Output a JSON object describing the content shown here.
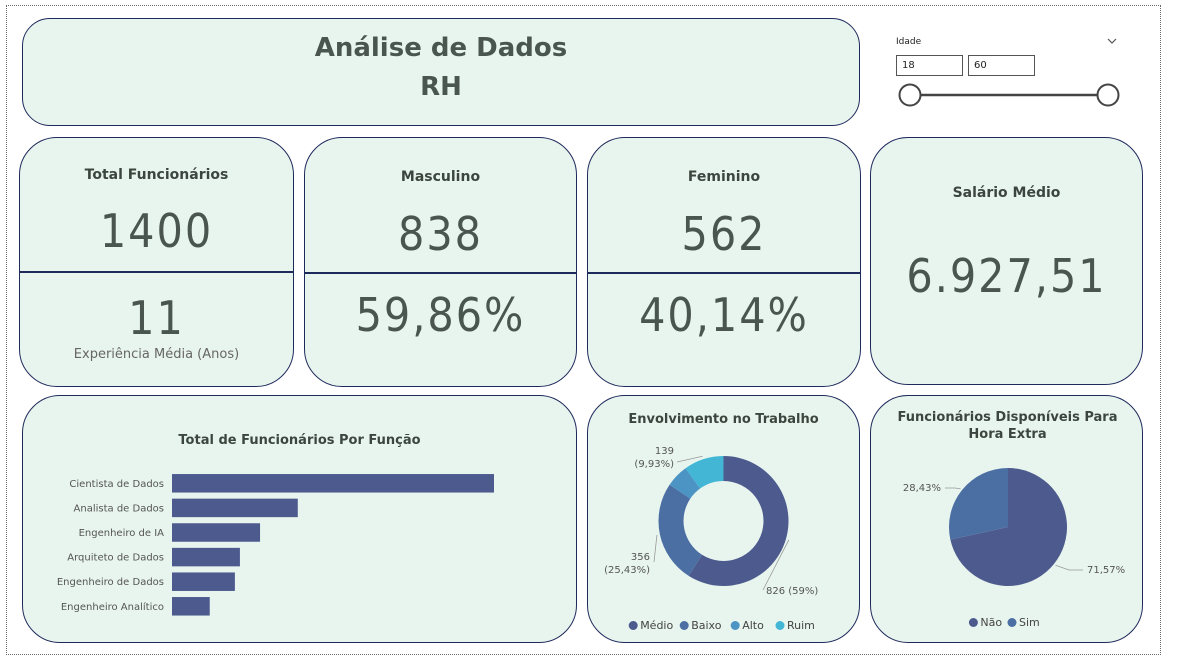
{
  "header": {
    "title_line1": "Análise de Dados",
    "title_line2": "RH"
  },
  "slicer": {
    "label": "Idade",
    "min": "18",
    "max": "60"
  },
  "kpis": {
    "total": {
      "label": "Total Funcionários",
      "value": "1400",
      "sub_value": "11",
      "sub_label": "Experiência Média (Anos)"
    },
    "male": {
      "label": "Masculino",
      "value": "838",
      "pct": "59,86%"
    },
    "female": {
      "label": "Feminino",
      "value": "562",
      "pct": "40,14%"
    },
    "salary": {
      "label": "Salário Médio",
      "value": "6.927,51"
    }
  },
  "colors": {
    "navy": "#4d5a8e",
    "steel": "#4b6ea3",
    "mid": "#4c94c4",
    "light": "#43b6d6",
    "card": "#e8f5ee"
  },
  "chart_data": [
    {
      "type": "bar",
      "title": "Total de Funcionários Por Função",
      "categories": [
        "Cientista de Dados",
        "Analista de Dados",
        "Engenheiro de IA",
        "Arquiteto de Dados",
        "Engenheiro de Dados",
        "Engenheiro Analítico"
      ],
      "values": [
        640,
        250,
        175,
        135,
        125,
        75
      ]
    },
    {
      "type": "pie",
      "donut": true,
      "title": "Envolvimento no Trabalho",
      "labels": [
        "Médio",
        "Baixo",
        "Alto",
        "Ruim"
      ],
      "values": [
        826,
        356,
        79,
        139
      ],
      "data_labels": [
        "826 (59%)",
        "356 (25,43%)",
        "",
        "139 (9,93%)"
      ],
      "legend": "bottom"
    },
    {
      "type": "pie",
      "title": "Funcionários Disponíveis Para Hora Extra",
      "labels": [
        "Não",
        "Sim"
      ],
      "values": [
        71.57,
        28.43
      ],
      "data_labels": [
        "71,57%",
        "28,43%"
      ],
      "legend": "bottom"
    }
  ]
}
